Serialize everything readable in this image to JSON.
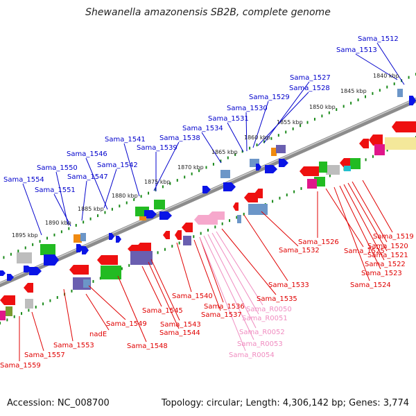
{
  "title": "Shewanella amazonensis SB2B, complete genome",
  "footer": {
    "accession": "Accession: NC_008700",
    "summary": "Topology: circular; Length: 4,306,142 bp; Genes: 3,774"
  },
  "colors": {
    "forward_label": "#0000cc",
    "reverse_label": "#e00000",
    "rna_label": "#f08cc0",
    "backbone": "#8c8c8c",
    "tick": "#1a8a1a"
  },
  "kbp_ticks": [
    "1840 kbp",
    "1845 kbp",
    "1850 kbp",
    "1855 kbp",
    "1860 kbp",
    "1865 kbp",
    "1870 kbp",
    "1875 kbp",
    "1880 kbp",
    "1885 kbp",
    "1890 kbp",
    "1895 kbp"
  ],
  "forward_genes": [
    "Sama_1512",
    "Sama_1513",
    "Sama_1527",
    "Sama_1528",
    "Sama_1529",
    "Sama_1530",
    "Sama_1531",
    "Sama_1534",
    "Sama_1538",
    "Sama_1539",
    "Sama_1541",
    "Sama_1542",
    "Sama_1546",
    "Sama_1547",
    "Sama_1550",
    "Sama_1551",
    "Sama_1554"
  ],
  "reverse_genes": [
    "Sama_1519",
    "Sama_1520",
    "Sama_1521",
    "Sama_1522",
    "Sama_1523",
    "Sama_1524",
    "Sama_1525",
    "Sama_1526",
    "Sama_1532",
    "Sama_1533",
    "Sama_1535",
    "Sama_1536",
    "Sama_1537",
    "Sama_1540",
    "Sama_1543",
    "Sama_1544",
    "Sama_1545",
    "Sama_1548",
    "Sama_1549",
    "Sama_1553",
    "nadE",
    "Sama_1557",
    "Sama_1559"
  ],
  "rna_genes": [
    "Sama_R0050",
    "Sama_R0051",
    "Sama_R0052",
    "Sama_R0053",
    "Sama_R0054"
  ]
}
